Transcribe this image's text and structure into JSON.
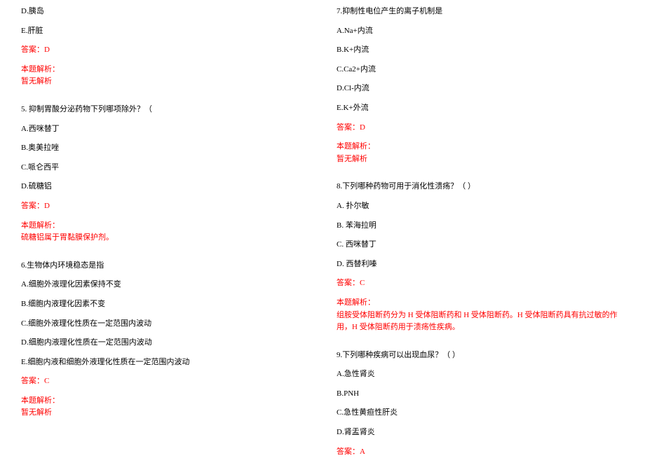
{
  "colors": {
    "text": "#000000",
    "highlight": "#ff0000",
    "background": "#ffffff"
  },
  "typography": {
    "fontsize": 11,
    "font_family": "SimSun"
  },
  "left_column": {
    "q4_tail": {
      "options": [
        "D.胰岛",
        "E.肝脏"
      ],
      "answer": "答案：D",
      "explain_label": "本题解析：",
      "explain_text": "暂无解析"
    },
    "q5": {
      "question": "5. 抑制胃酸分泌药物下列哪项除外？（",
      "options": [
        "A.西咪替丁",
        "B.奥美拉唑",
        "C.哌仑西平",
        "D.硫糖铝"
      ],
      "answer": "答案：D",
      "explain_label": "本题解析：",
      "explain_text": "硫糖铝属于胃黏膜保护剂。"
    },
    "q6": {
      "question": "6.生物体内环境稳态是指",
      "options": [
        "A.细胞外液理化因素保持不变",
        "B.细胞内液理化因素不变",
        "C.细胞外液理化性质在一定范围内波动",
        "D.细胞内液理化性质在一定范围内波动",
        "E.细胞内液和细胞外液理化性质在一定范围内波动"
      ],
      "answer": "答案：C",
      "explain_label": "本题解析：",
      "explain_text": "暂无解析"
    }
  },
  "right_column": {
    "q7": {
      "question": "7.抑制性电位产生的离子机制是",
      "options": [
        "A.Na+内流",
        "B.K+内流",
        "C.Ca2+内流",
        "D.Cl-内流",
        "E.K+外流"
      ],
      "answer": "答案：D",
      "explain_label": "本题解析：",
      "explain_text": "暂无解析"
    },
    "q8": {
      "question": "8.下列哪种药物可用于消化性溃疡？（ ）",
      "options": [
        "A. 扑尔敏",
        "B. 苯海拉明",
        "C. 西咪替丁",
        "D. 西替利嗪"
      ],
      "answer": "答案：C",
      "explain_label": "本题解析：",
      "explain_text": "组胺受体阻断药分为 H 受体阻断药和 H 受体阻断药。H 受体阻断药具有抗过敏的作用，H 受体阻断药用于溃疡性疾病。"
    },
    "q9": {
      "question": "9.下列哪种疾病可以出现血尿？（ ）",
      "options": [
        "A.急性肾炎",
        "B.PNH",
        "C.急性黄疸性肝炎",
        "D.肾盂肾炎"
      ],
      "answer": "答案：A"
    }
  }
}
